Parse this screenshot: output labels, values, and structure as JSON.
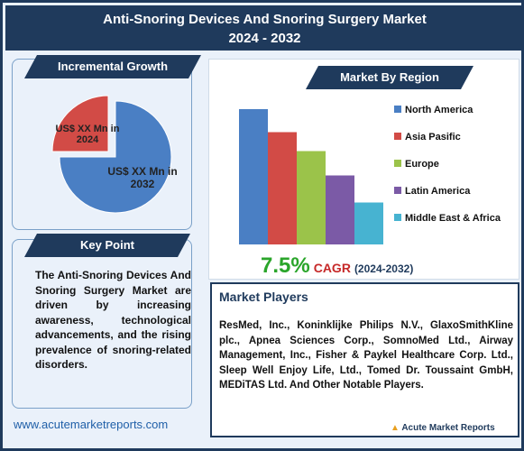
{
  "title_line1": "Anti-Snoring Devices And Snoring Surgery Market",
  "title_line2": "2024 - 2032",
  "incremental": {
    "heading": "Incremental Growth",
    "label_2024": "US$ XX Mn in 2024",
    "label_2032": "US$ XX Mn in 2032"
  },
  "region_heading": "Market By Region",
  "key_point": {
    "heading": "Key Point",
    "text": "The Anti-Snoring Devices And Snoring Surgery Market are driven by increasing awareness, technological advancements, and the rising prevalence of snoring-related disorders."
  },
  "cagr": {
    "value": "7.5%",
    "label": "CAGR",
    "period": "(2024-2032)"
  },
  "players": {
    "heading": "Market Players",
    "text": "ResMed, Inc., Koninklijke Philips N.V., GlaxoSmithKline plc., Apnea Sciences Corp., SomnoMed Ltd., Airway Management, Inc., Fisher & Paykel Healthcare Corp. Ltd., Sleep Well Enjoy Life, Ltd., Tomed Dr. Toussaint GmbH, MEDiTAS Ltd. And Other Notable Players."
  },
  "url": "www.acutemarketreports.com",
  "logo": "Acute Market Reports",
  "colors": {
    "navy": "#1f3a5c",
    "north_america": "#4a7fc4",
    "asia_pacific": "#d24b46",
    "europe": "#9bc34a",
    "latin_america": "#7b5aa6",
    "middle_east_africa": "#47b3d1"
  },
  "chart_data": [
    {
      "type": "pie",
      "title": "Incremental Growth",
      "categories": [
        "US$ XX Mn in 2024",
        "US$ XX Mn in 2032"
      ],
      "values": [
        25,
        75
      ]
    },
    {
      "type": "bar",
      "title": "Market By Region",
      "categories": [
        "North America",
        "Asia Pasific",
        "Europe",
        "Latin America",
        "Middle East & Africa"
      ],
      "values": [
        100,
        83,
        69,
        51,
        31
      ]
    }
  ]
}
